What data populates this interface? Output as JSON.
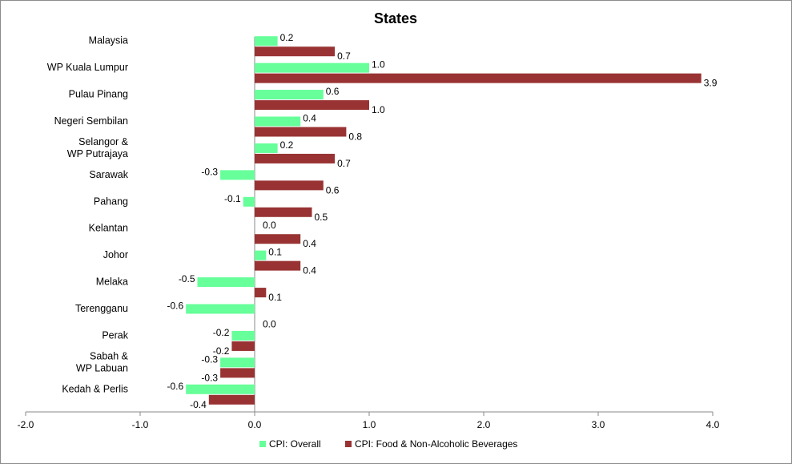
{
  "chart_data": {
    "type": "bar",
    "orientation": "horizontal",
    "title": "States",
    "xlabel": "",
    "ylabel": "",
    "xlim": [
      -2.0,
      4.0
    ],
    "x_ticks": [
      "-2.0",
      "-1.0",
      "0.0",
      "1.0",
      "2.0",
      "3.0",
      "4.0"
    ],
    "grid": false,
    "legend_position": "bottom",
    "categories": [
      [
        "Malaysia"
      ],
      [
        "WP Kuala Lumpur"
      ],
      [
        "Pulau Pinang"
      ],
      [
        "Negeri Sembilan"
      ],
      [
        "Selangor &",
        "WP Putrajaya"
      ],
      [
        "Sarawak"
      ],
      [
        "Pahang"
      ],
      [
        "Kelantan"
      ],
      [
        "Johor"
      ],
      [
        "Melaka"
      ],
      [
        "Terengganu"
      ],
      [
        "Perak"
      ],
      [
        "Sabah &",
        "WP Labuan"
      ],
      [
        "Kedah & Perlis"
      ]
    ],
    "series": [
      {
        "name": "CPI: Overall",
        "color": "#66ff99",
        "values": [
          0.2,
          1.0,
          0.6,
          0.4,
          0.2,
          -0.3,
          -0.1,
          0.0,
          0.1,
          -0.5,
          -0.6,
          -0.2,
          -0.3,
          -0.6
        ],
        "labels": [
          "0.2",
          "1.0",
          "0.6",
          "0.4",
          "0.2",
          "-0.3",
          "-0.1",
          "0.0",
          "0.1",
          "-0.5",
          "-0.6",
          "-0.2",
          "-0.3",
          "-0.6"
        ]
      },
      {
        "name": "CPI: Food & Non-Alcoholic Beverages",
        "color": "#993333",
        "values": [
          0.7,
          3.9,
          1.0,
          0.8,
          0.7,
          0.6,
          0.5,
          0.4,
          0.4,
          0.1,
          0.0,
          -0.2,
          -0.3,
          -0.4
        ],
        "labels": [
          "0.7",
          "3.9",
          "1.0",
          "0.8",
          "0.7",
          "0.6",
          "0.5",
          "0.4",
          "0.4",
          "0.1",
          "0.0",
          "-0.2",
          "-0.3",
          "-0.4"
        ]
      }
    ]
  }
}
